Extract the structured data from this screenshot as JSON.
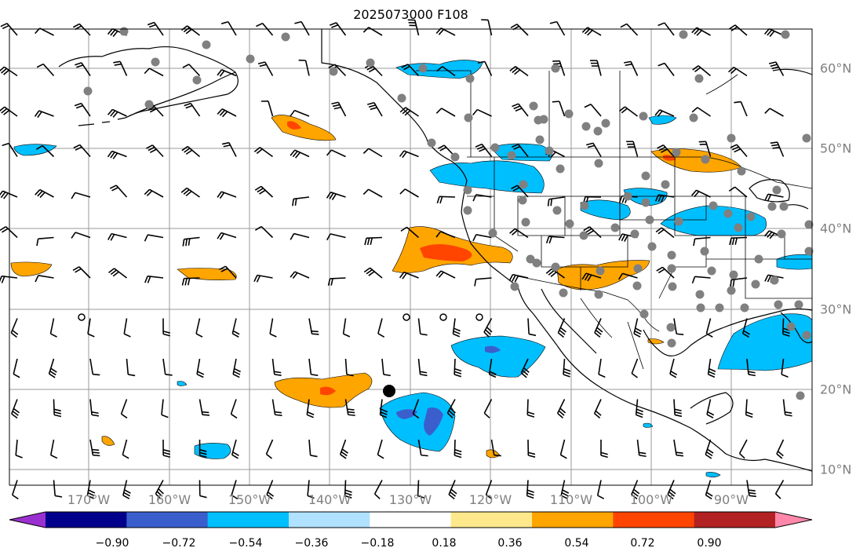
{
  "title": "2025073000 F108",
  "map": {
    "lon_ticks": [
      "170°W",
      "160°W",
      "150°W",
      "140°W",
      "130°W",
      "120°W",
      "110°W",
      "100°W",
      "90°W"
    ],
    "lat_ticks": [
      "60°N",
      "50°N",
      "40°N",
      "30°N",
      "20°N",
      "10°N"
    ],
    "lon_range": [
      -180,
      -80
    ],
    "lat_range": [
      8,
      63
    ],
    "grid": true,
    "features": [
      "coastlines",
      "country-borders",
      "state-borders",
      "wind-barbs",
      "station-dots"
    ]
  },
  "colorbar": {
    "orientation": "horizontal",
    "extend": "both",
    "labels": [
      "−0.90",
      "−0.72",
      "−0.54",
      "−0.36",
      "−0.18",
      "0.18",
      "0.36",
      "0.54",
      "0.72",
      "0.90"
    ],
    "colors": [
      "#9b30d0",
      "#00008b",
      "#3a5fcd",
      "#00bfff",
      "#b0e2ff",
      "#ffffff",
      "#fde98b",
      "#ffa500",
      "#ff4500",
      "#b22222",
      "#ff88aa"
    ]
  }
}
